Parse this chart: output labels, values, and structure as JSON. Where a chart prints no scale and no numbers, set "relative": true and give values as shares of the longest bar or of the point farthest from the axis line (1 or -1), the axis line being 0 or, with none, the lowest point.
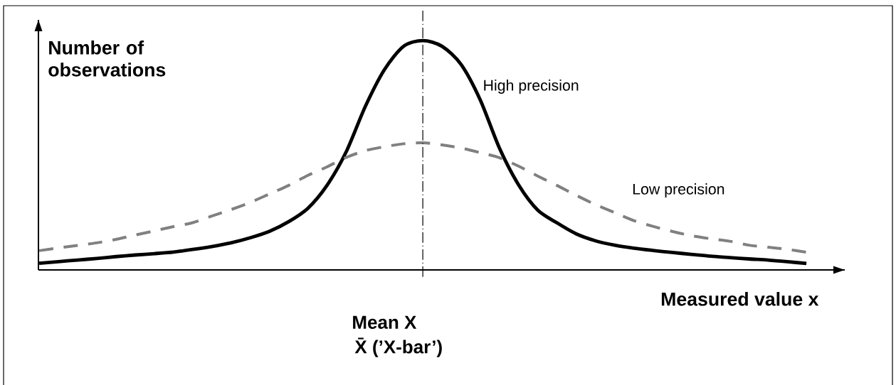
{
  "chart_data": {
    "type": "line",
    "relative": true,
    "tick_labels": false,
    "xlabel": "Measured value x",
    "ylabel": "Number of observations",
    "categories": [
      null,
      null,
      null,
      null,
      null,
      null,
      null,
      null,
      null,
      null,
      null,
      null,
      null,
      null,
      null,
      null,
      null,
      null,
      null,
      null,
      null,
      null,
      null,
      null,
      null,
      null,
      null,
      null,
      null,
      null,
      null,
      null,
      null,
      null,
      null,
      null,
      null,
      null,
      null,
      null,
      null
    ],
    "series": [
      {
        "name": "High precision",
        "color": "#000000",
        "line_style": "solid",
        "values": [
          0.029,
          0.036,
          0.043,
          0.05,
          0.058,
          0.065,
          0.071,
          0.078,
          0.089,
          0.102,
          0.118,
          0.14,
          0.168,
          0.21,
          0.268,
          0.368,
          0.514,
          0.712,
          0.873,
          0.975,
          1,
          0.975,
          0.895,
          0.74,
          0.53,
          0.37,
          0.26,
          0.205,
          0.157,
          0.127,
          0.108,
          0.095,
          0.085,
          0.076,
          0.068,
          0.06,
          0.054,
          0.048,
          0.043,
          0.036,
          0.028
        ]
      },
      {
        "name": "Low precision",
        "color": "#808080",
        "line_style": "dashed",
        "values": [
          0.084,
          0.096,
          0.107,
          0.118,
          0.133,
          0.152,
          0.17,
          0.189,
          0.206,
          0.235,
          0.263,
          0.294,
          0.331,
          0.368,
          0.412,
          0.449,
          0.49,
          0.52,
          0.537,
          0.55,
          0.554,
          0.545,
          0.531,
          0.511,
          0.489,
          0.452,
          0.409,
          0.368,
          0.325,
          0.285,
          0.25,
          0.215,
          0.19,
          0.168,
          0.149,
          0.136,
          0.125,
          0.108,
          0.099,
          0.09,
          0.077
        ]
      }
    ],
    "annotations": [
      "Mean X",
      "X̄ (’X-bar’)"
    ]
  }
}
